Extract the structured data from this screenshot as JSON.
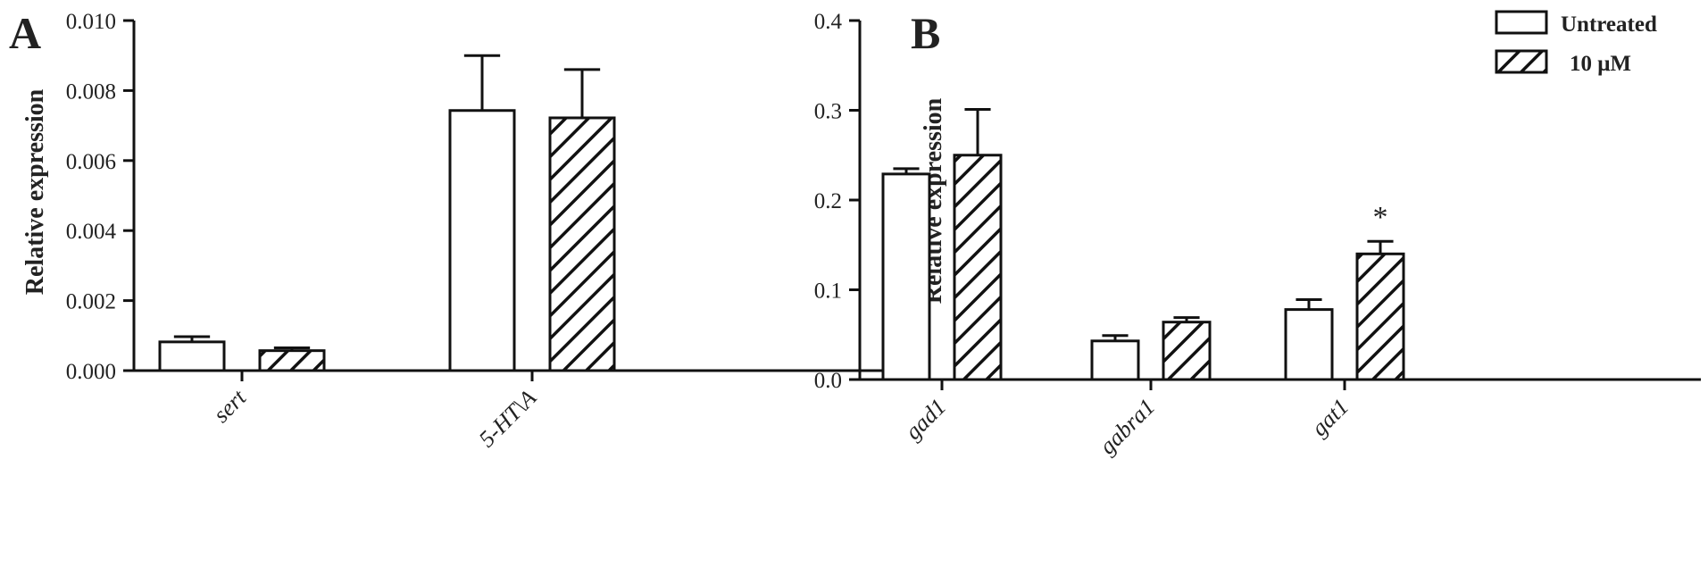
{
  "legend": {
    "untreated": "Untreated",
    "treated": "10 μM"
  },
  "chart_data": [
    {
      "panel": "A",
      "type": "bar",
      "ylabel": "Relative expression",
      "ylim": [
        0,
        0.01
      ],
      "yticks": [
        "0.000",
        "0.002",
        "0.004",
        "0.006",
        "0.008",
        "0.010"
      ],
      "categories": [
        "sert",
        "5-HT1A"
      ],
      "category_labels": [
        "sert",
        "5-HT\\A"
      ],
      "series": [
        {
          "name": "Untreated",
          "values": [
            0.00082,
            0.00743
          ],
          "errors": [
            0.00015,
            0.00157
          ]
        },
        {
          "name": "10 μM",
          "values": [
            0.00057,
            0.00722
          ],
          "errors": [
            8e-05,
            0.00138
          ]
        }
      ],
      "significance": []
    },
    {
      "panel": "B",
      "type": "bar",
      "ylabel": "Relative expression",
      "ylim": [
        0,
        0.4
      ],
      "yticks": [
        "0.0",
        "0.1",
        "0.2",
        "0.3",
        "0.4"
      ],
      "categories": [
        "gad1",
        "gabra1",
        "gat1"
      ],
      "category_labels": [
        "gad1",
        "gabra1",
        "gat1"
      ],
      "series": [
        {
          "name": "Untreated",
          "values": [
            0.229,
            0.043,
            0.078
          ],
          "errors": [
            0.006,
            0.006,
            0.011
          ]
        },
        {
          "name": "10 μM",
          "values": [
            0.25,
            0.064,
            0.14
          ],
          "errors": [
            0.051,
            0.005,
            0.014
          ]
        }
      ],
      "significance": [
        {
          "category": "gat1",
          "series": "10 μM",
          "mark": "*"
        }
      ]
    }
  ]
}
